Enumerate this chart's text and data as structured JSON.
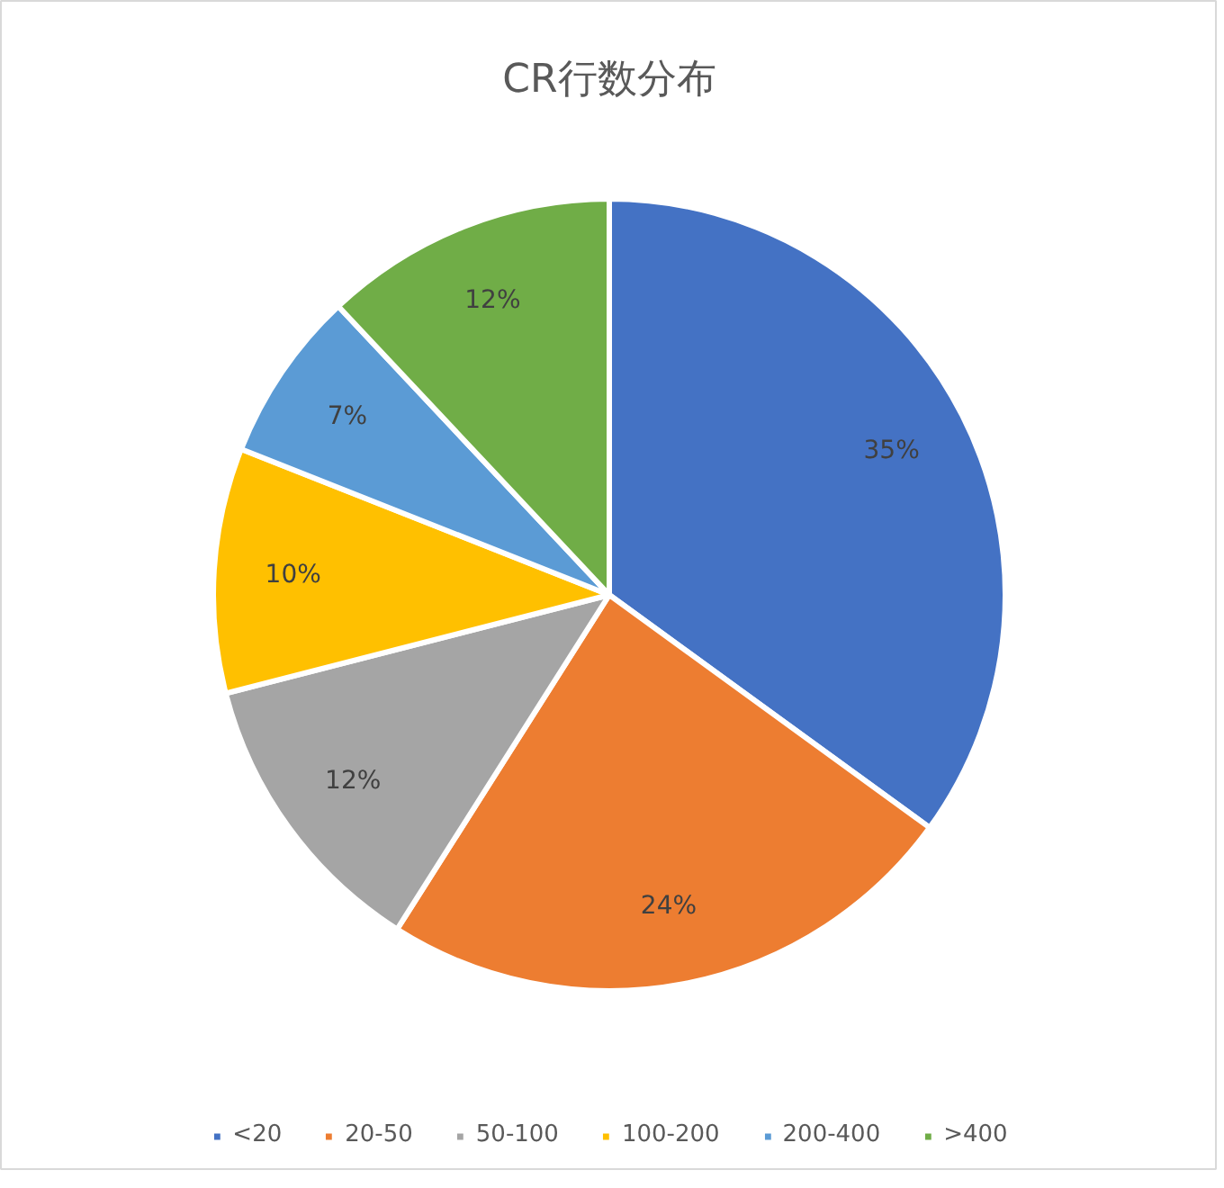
{
  "chart_data": {
    "type": "pie",
    "title": "CR行数分布",
    "categories": [
      "<20",
      "20-50",
      "50-100",
      "100-200",
      "200-400",
      ">400"
    ],
    "values": [
      35,
      24,
      12,
      10,
      7,
      12
    ],
    "colors": [
      "#4472c4",
      "#ed7d31",
      "#a5a5a5",
      "#ffc000",
      "#5b9bd5",
      "#70ad47"
    ],
    "value_labels": [
      "35%",
      "24%",
      "12%",
      "10%",
      "7%",
      "12%"
    ],
    "legend": "bottom"
  }
}
